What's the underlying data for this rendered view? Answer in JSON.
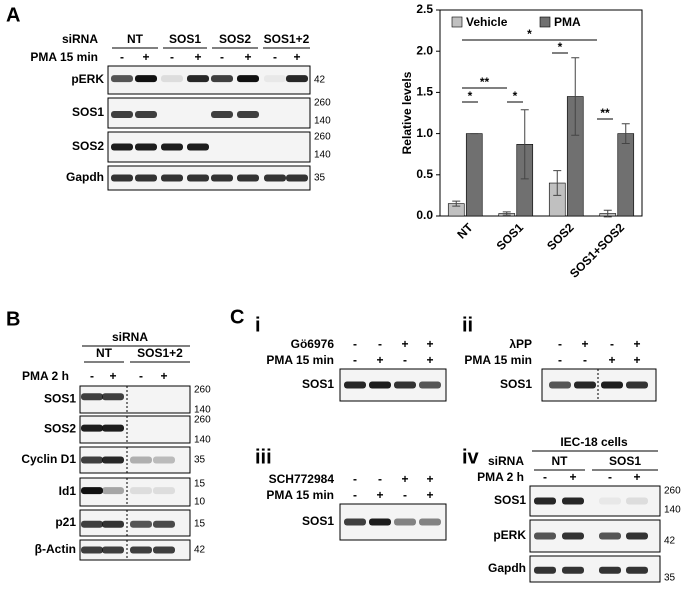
{
  "panel_a": {
    "label": "A",
    "sirna": "siRNA",
    "groups": [
      "NT",
      "SOS1",
      "SOS2",
      "SOS1+2"
    ],
    "treatment": "PMA 15 min",
    "signs": [
      "-",
      "+",
      "-",
      "+",
      "-",
      "+",
      "-",
      "+"
    ],
    "blots": [
      {
        "name": "pERK",
        "markers": [
          "42"
        ]
      },
      {
        "name": "SOS1",
        "markers": [
          "260",
          "140"
        ]
      },
      {
        "name": "SOS2",
        "markers": [
          "260",
          "140"
        ]
      },
      {
        "name": "Gapdh",
        "markers": [
          "35"
        ]
      }
    ]
  },
  "chart_data": {
    "type": "bar",
    "ylabel": "Relative levels",
    "categories": [
      "NT",
      "SOS1",
      "SOS2",
      "SOS1+SOS2"
    ],
    "series": [
      {
        "name": "Vehicle",
        "color": "#c0c0c0",
        "values": [
          0.15,
          0.03,
          0.4,
          0.03
        ],
        "errors": [
          0.03,
          0.02,
          0.15,
          0.04
        ]
      },
      {
        "name": "PMA",
        "color": "#707070",
        "values": [
          1.0,
          0.87,
          1.45,
          1.0
        ],
        "errors": [
          0,
          0.42,
          0.47,
          0.12
        ]
      }
    ],
    "ylim": [
      0,
      2.5
    ],
    "yticks": [
      {
        "value": 0,
        "label": "0.0"
      },
      0.5,
      {
        "value": 1,
        "label": "1.0"
      },
      1.5,
      {
        "value": 2,
        "label": "2.0"
      },
      2.5
    ],
    "legend": "top",
    "annotations": [
      "*",
      "**",
      "*",
      "*",
      "*",
      "**"
    ]
  },
  "panel_b": {
    "label": "B",
    "sirna": "siRNA",
    "groups": [
      "NT",
      "SOS1+2"
    ],
    "treatment": "PMA 2 h",
    "signs": [
      "-",
      "+",
      "-",
      "+"
    ],
    "blots": [
      {
        "name": "SOS1",
        "markers": [
          "260",
          "140"
        ]
      },
      {
        "name": "SOS2",
        "markers": [
          "260",
          "140"
        ]
      },
      {
        "name": "Cyclin D1",
        "markers": [
          "35"
        ]
      },
      {
        "name": "Id1",
        "markers": [
          "15",
          "10"
        ]
      },
      {
        "name": "p21",
        "markers": [
          "15"
        ]
      },
      {
        "name": "β-Actin",
        "markers": [
          "42"
        ]
      }
    ]
  },
  "panel_c": {
    "label": "C",
    "subpanels": [
      {
        "label": "i",
        "rows": [
          {
            "label": "Gö6976",
            "signs": [
              "-",
              "-",
              "+",
              "+"
            ]
          },
          {
            "label": "PMA 15 min",
            "signs": [
              "-",
              "+",
              "-",
              "+"
            ]
          }
        ],
        "blots": [
          {
            "name": "SOS1",
            "markers": []
          }
        ]
      },
      {
        "label": "ii",
        "rows": [
          {
            "label": "λPP",
            "signs": [
              "-",
              "+",
              "-",
              "+"
            ]
          },
          {
            "label": "PMA 15 min",
            "signs": [
              "-",
              "-",
              "+",
              "+"
            ]
          }
        ],
        "blots": [
          {
            "name": "SOS1",
            "markers": []
          }
        ]
      },
      {
        "label": "iii",
        "rows": [
          {
            "label": "SCH772984",
            "signs": [
              "-",
              "-",
              "+",
              "+"
            ]
          },
          {
            "label": "PMA 15 min",
            "signs": [
              "-",
              "+",
              "-",
              "+"
            ]
          }
        ],
        "blots": [
          {
            "name": "SOS1",
            "markers": []
          }
        ]
      },
      {
        "label": "iv",
        "cells": "IEC-18 cells",
        "sirna": "siRNA",
        "groups": [
          "NT",
          "SOS1"
        ],
        "rows": [
          {
            "label": "PMA 2 h",
            "signs": [
              "-",
              "+",
              "-",
              "+"
            ]
          }
        ],
        "blots": [
          {
            "name": "SOS1",
            "markers": [
              "260",
              "140"
            ]
          },
          {
            "name": "pERK",
            "markers": [
              "42"
            ]
          },
          {
            "name": "Gapdh",
            "markers": [
              "35"
            ]
          }
        ]
      }
    ]
  }
}
